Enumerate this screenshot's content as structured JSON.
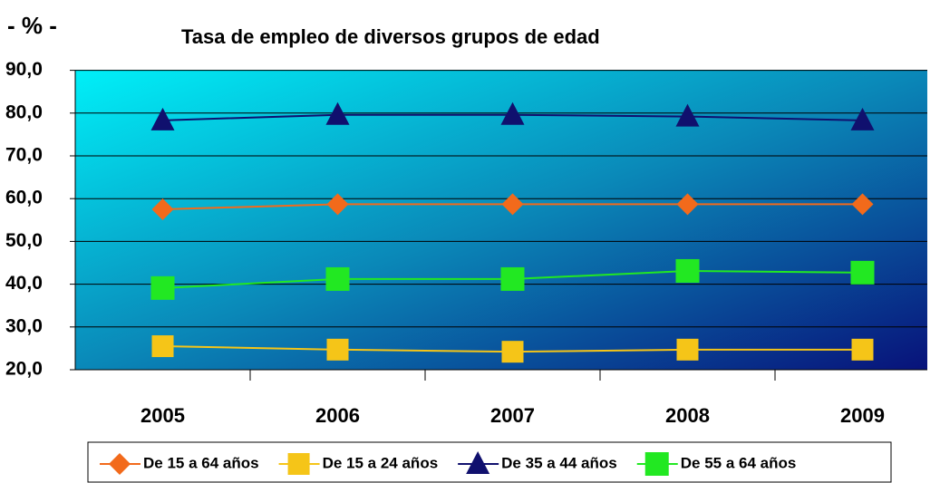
{
  "chart_data": {
    "type": "line",
    "title": "Tasa de empleo de diversos grupos de edad",
    "y_label": "- % -",
    "categories": [
      "2005",
      "2006",
      "2007",
      "2008",
      "2009"
    ],
    "series": [
      {
        "name": "De 15 a 64 años",
        "color": "#f26a1b",
        "marker": "diamond",
        "values": [
          57.5,
          58.7,
          58.7,
          58.7,
          58.7
        ]
      },
      {
        "name": "De 15 a 24 años",
        "color": "#f5c518",
        "marker": "square",
        "values": [
          25.5,
          24.7,
          24.2,
          24.7,
          24.7
        ]
      },
      {
        "name": "De 35 a 44 años",
        "color": "#10106e",
        "marker": "triangle",
        "values": [
          78.3,
          79.6,
          79.6,
          79.2,
          78.3
        ]
      },
      {
        "name": "De 55 a 64 años",
        "color": "#22e822",
        "marker": "square",
        "values": [
          39.1,
          41.2,
          41.2,
          43.1,
          42.7
        ]
      }
    ],
    "ylim": [
      20,
      90
    ],
    "yticks": [
      {
        "value": 20,
        "label": "20,0"
      },
      {
        "value": 30,
        "label": "30,0"
      },
      {
        "value": 40,
        "label": "40,0"
      },
      {
        "value": 50,
        "label": "50,0"
      },
      {
        "value": 60,
        "label": "60,0"
      },
      {
        "value": 70,
        "label": "70,0"
      },
      {
        "value": 80,
        "label": "80,0"
      },
      {
        "value": 90,
        "label": "90,0"
      }
    ],
    "grid": true
  }
}
